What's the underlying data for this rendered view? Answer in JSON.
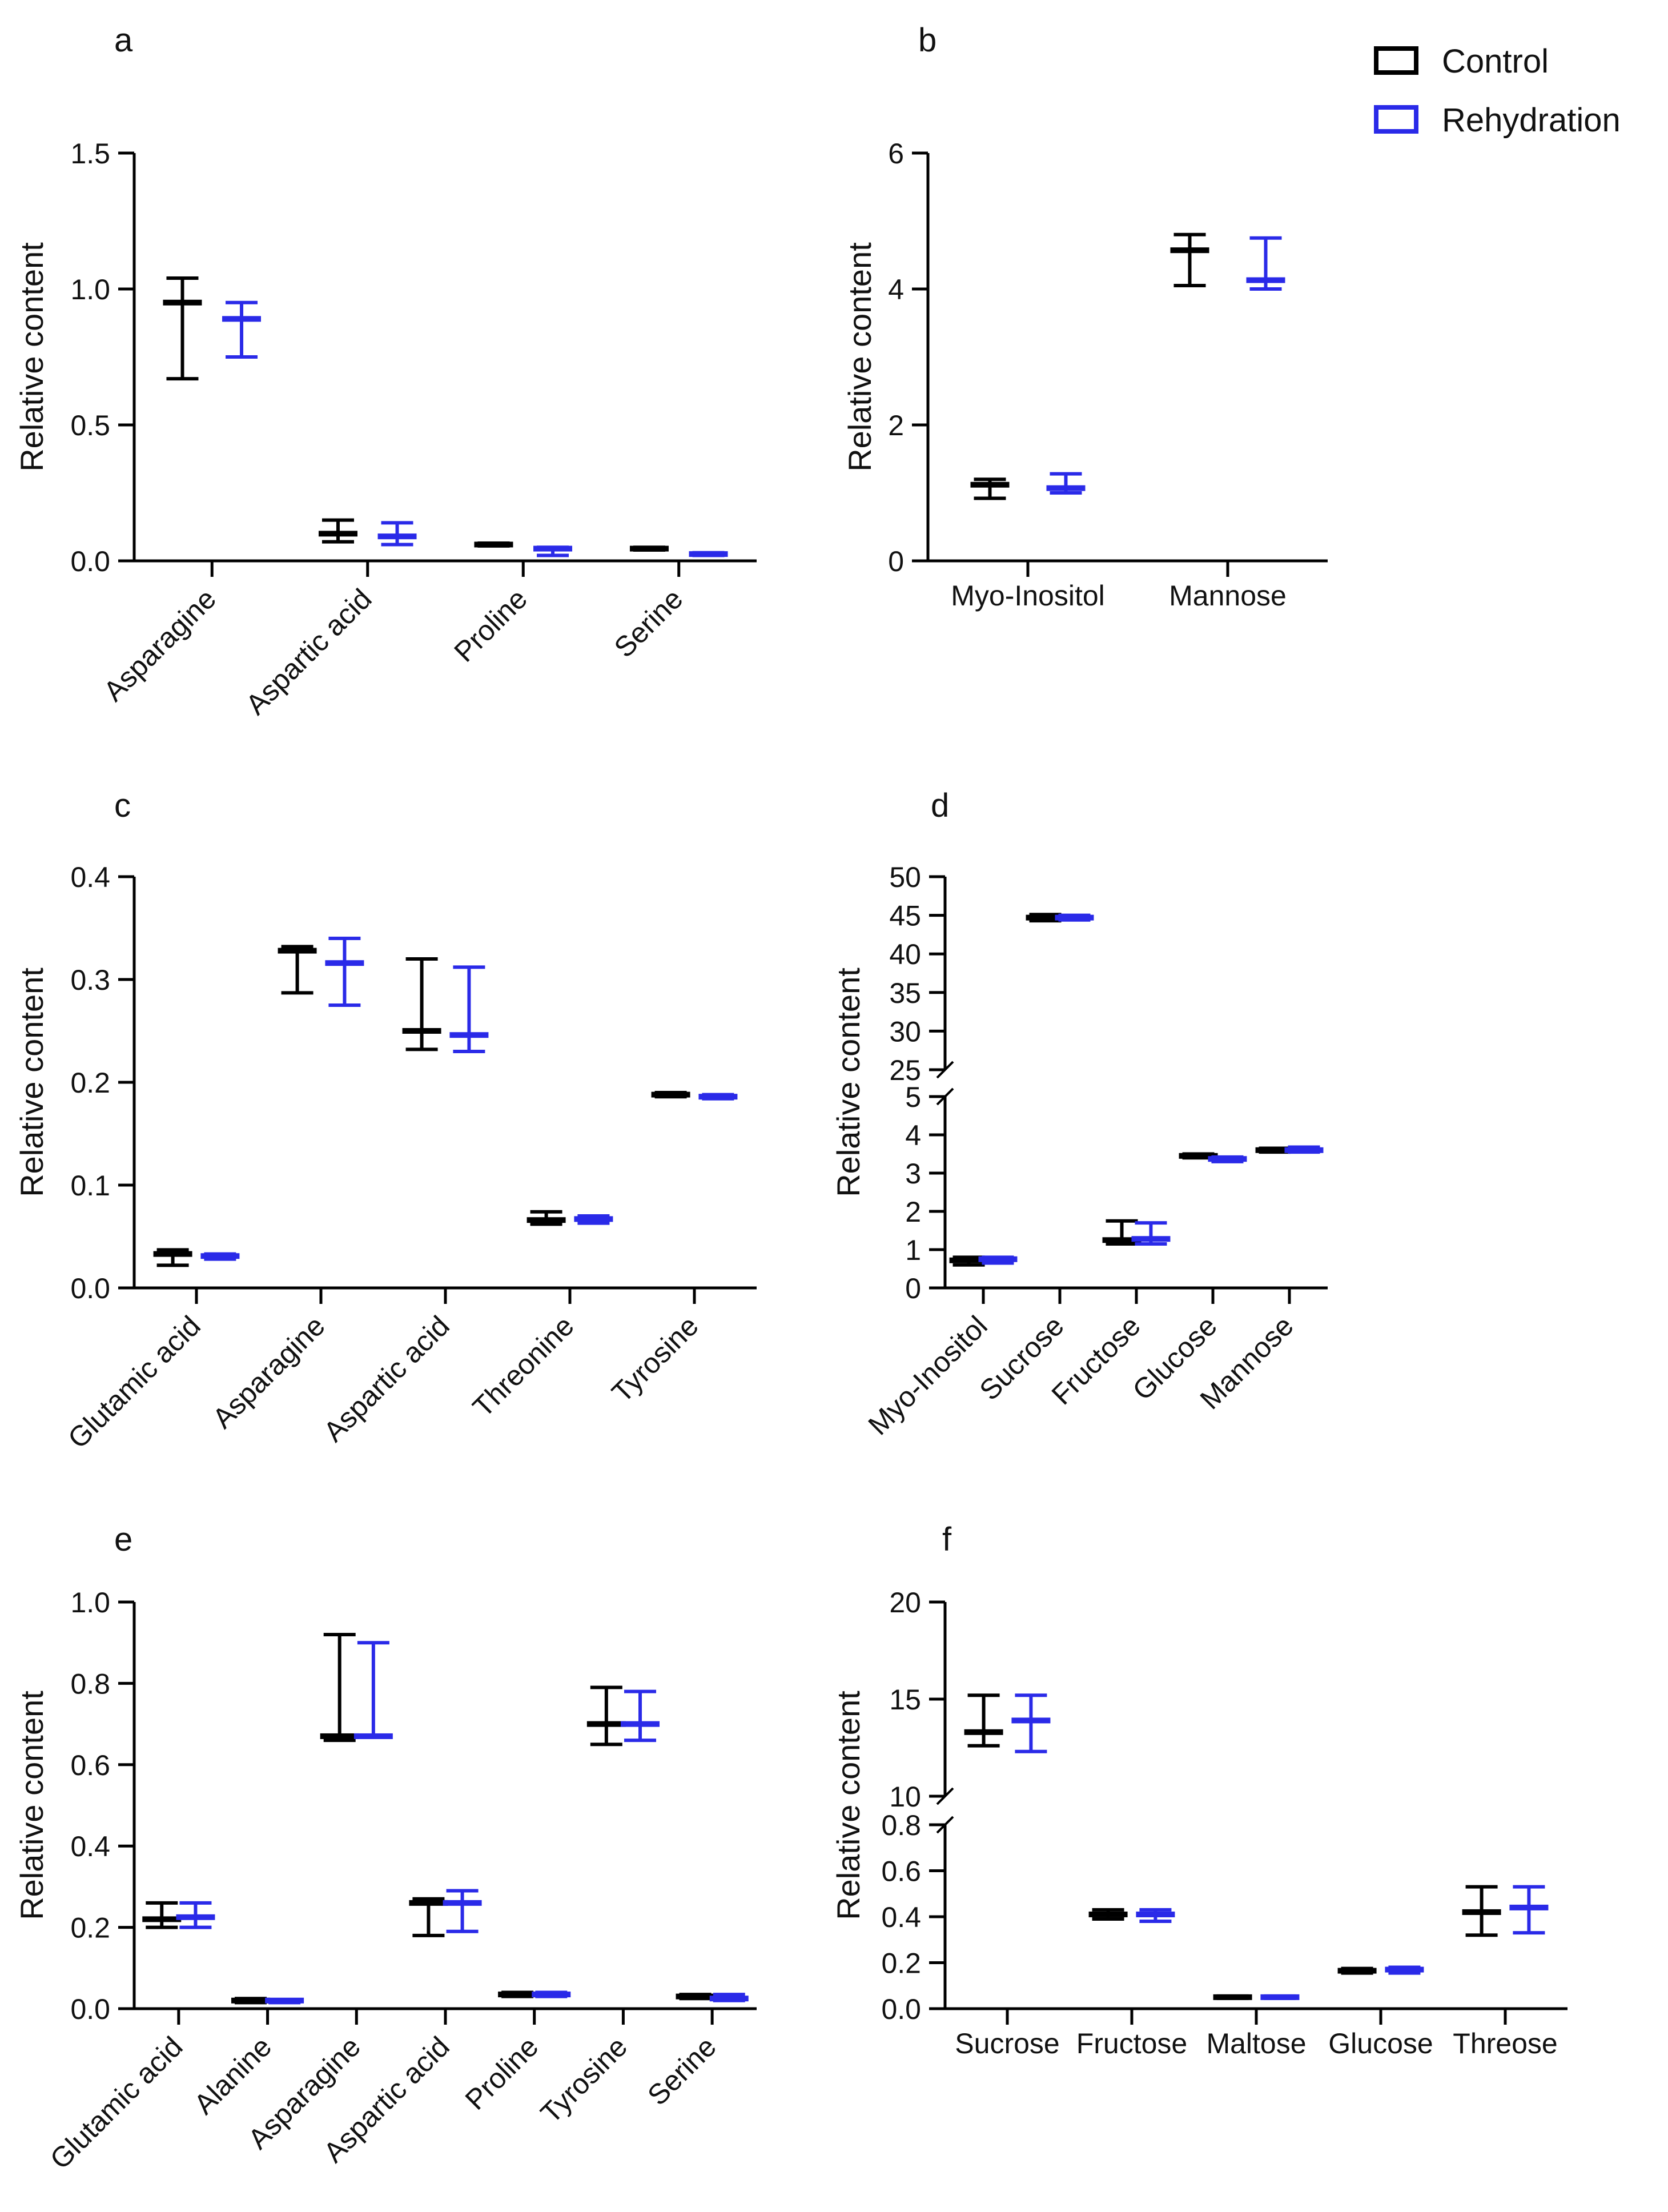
{
  "legend": {
    "placement": "top-right",
    "items": [
      {
        "label": "Control",
        "color": "#000000"
      },
      {
        "label": "Rehydration",
        "color": "#2a2ae8"
      }
    ]
  },
  "chart_data": [
    {
      "panel": "a",
      "type": "box",
      "ylabel": "Relative content",
      "ylim": [
        0,
        1.5
      ],
      "yticks": [
        0,
        0.5,
        1.0,
        1.5
      ],
      "ytick_labels": [
        "0.0",
        "0.5",
        "1.0",
        "1.5"
      ],
      "categories": [
        "Asparagine",
        "Aspartic acid",
        "Proline",
        "Serine"
      ],
      "rotate": true,
      "series": [
        {
          "name": "Control",
          "min": [
            0.67,
            0.07,
            0.055,
            0.04
          ],
          "median": [
            0.95,
            0.1,
            0.06,
            0.045
          ],
          "max": [
            1.04,
            0.15,
            0.065,
            0.05
          ]
        },
        {
          "name": "Rehydration",
          "min": [
            0.75,
            0.06,
            0.02,
            0.02
          ],
          "median": [
            0.89,
            0.09,
            0.045,
            0.025
          ],
          "max": [
            0.95,
            0.14,
            0.05,
            0.03
          ]
        }
      ]
    },
    {
      "panel": "b",
      "type": "box",
      "ylabel": "Relative content",
      "ylim": [
        0,
        6
      ],
      "yticks": [
        0,
        2,
        4,
        6
      ],
      "ytick_labels": [
        "0",
        "2",
        "4",
        "6"
      ],
      "categories": [
        "Myo-Inositol",
        "Mannose"
      ],
      "rotate": false,
      "series": [
        {
          "name": "Control",
          "min": [
            0.92,
            4.05
          ],
          "median": [
            1.12,
            4.57
          ],
          "max": [
            1.2,
            4.8
          ]
        },
        {
          "name": "Rehydration",
          "min": [
            1.0,
            4.0
          ],
          "median": [
            1.07,
            4.13
          ],
          "max": [
            1.28,
            4.75
          ]
        }
      ]
    },
    {
      "panel": "c",
      "type": "box",
      "ylabel": "Relative content",
      "ylim": [
        0,
        0.4
      ],
      "yticks": [
        0,
        0.1,
        0.2,
        0.3,
        0.4
      ],
      "ytick_labels": [
        "0.0",
        "0.1",
        "0.2",
        "0.3",
        "0.4"
      ],
      "categories": [
        "Glutamic acid",
        "Asparagine",
        "Aspartic acid",
        "Threonine",
        "Tyrosine"
      ],
      "rotate": true,
      "series": [
        {
          "name": "Control",
          "min": [
            0.022,
            0.287,
            0.232,
            0.062,
            0.186
          ],
          "median": [
            0.033,
            0.328,
            0.25,
            0.066,
            0.188
          ],
          "max": [
            0.037,
            0.332,
            0.32,
            0.074,
            0.19
          ]
        },
        {
          "name": "Rehydration",
          "min": [
            0.028,
            0.275,
            0.23,
            0.063,
            0.184
          ],
          "median": [
            0.031,
            0.316,
            0.246,
            0.067,
            0.186
          ],
          "max": [
            0.033,
            0.34,
            0.312,
            0.07,
            0.188
          ]
        }
      ]
    },
    {
      "panel": "d",
      "type": "box",
      "ylabel": "Relative content",
      "ylim": [
        0,
        50
      ],
      "broken_axis": {
        "lower": [
          0,
          5
        ],
        "upper": [
          25,
          50
        ]
      },
      "yticks": [
        0,
        1,
        2,
        3,
        4,
        5,
        25,
        30,
        35,
        40,
        45,
        50
      ],
      "ytick_labels": [
        "0",
        "1",
        "2",
        "3",
        "4",
        "5",
        "25",
        "30",
        "35",
        "40",
        "45",
        "50"
      ],
      "categories": [
        "Myo-Inositol",
        "Sucrose",
        "Fructose",
        "Glucose",
        "Mannose"
      ],
      "rotate": true,
      "series": [
        {
          "name": "Control",
          "min": [
            0.6,
            44.3,
            1.15,
            3.4,
            3.55
          ],
          "median": [
            0.72,
            44.7,
            1.25,
            3.45,
            3.6
          ],
          "max": [
            0.8,
            45.1,
            1.75,
            3.5,
            3.65
          ]
        },
        {
          "name": "Rehydration",
          "min": [
            0.65,
            44.4,
            1.15,
            3.3,
            3.55
          ],
          "median": [
            0.75,
            44.7,
            1.28,
            3.37,
            3.6
          ],
          "max": [
            0.8,
            45.0,
            1.7,
            3.42,
            3.68
          ]
        }
      ]
    },
    {
      "panel": "e",
      "type": "box",
      "ylabel": "Relative content",
      "ylim": [
        0,
        1.0
      ],
      "yticks": [
        0,
        0.2,
        0.4,
        0.6,
        0.8,
        1.0
      ],
      "ytick_labels": [
        "0.0",
        "0.2",
        "0.4",
        "0.6",
        "0.8",
        "1.0"
      ],
      "categories": [
        "Glutamic acid",
        "Alanine",
        "Asparagine",
        "Aspartic acid",
        "Proline",
        "Tyrosine",
        "Serine"
      ],
      "rotate": true,
      "series": [
        {
          "name": "Control",
          "min": [
            0.2,
            0.015,
            0.66,
            0.18,
            0.03,
            0.65,
            0.025
          ],
          "median": [
            0.22,
            0.02,
            0.67,
            0.26,
            0.035,
            0.7,
            0.03
          ],
          "max": [
            0.26,
            0.025,
            0.92,
            0.27,
            0.04,
            0.79,
            0.035
          ]
        },
        {
          "name": "Rehydration",
          "min": [
            0.2,
            0.015,
            0.67,
            0.19,
            0.03,
            0.66,
            0.02
          ],
          "median": [
            0.225,
            0.02,
            0.67,
            0.26,
            0.035,
            0.7,
            0.025
          ],
          "max": [
            0.26,
            0.022,
            0.9,
            0.29,
            0.04,
            0.78,
            0.035
          ]
        }
      ]
    },
    {
      "panel": "f",
      "type": "box",
      "ylabel": "Relative content",
      "ylim": [
        0,
        20
      ],
      "broken_axis": {
        "lower": [
          0,
          0.8
        ],
        "upper": [
          10,
          20
        ]
      },
      "yticks": [
        0,
        0.2,
        0.4,
        0.6,
        0.8,
        10,
        15,
        20
      ],
      "ytick_labels": [
        "0.0",
        "0.2",
        "0.4",
        "0.6",
        "0.8",
        "10",
        "15",
        "20"
      ],
      "categories": [
        "Sucrose",
        "Fructose",
        "Maltose",
        "Glucose",
        "Threose"
      ],
      "rotate": false,
      "series": [
        {
          "name": "Control",
          "min": [
            12.6,
            0.39,
            0.045,
            0.155,
            0.32
          ],
          "median": [
            13.3,
            0.41,
            0.05,
            0.165,
            0.42
          ],
          "max": [
            15.2,
            0.43,
            0.055,
            0.175,
            0.53
          ]
        },
        {
          "name": "Rehydration",
          "min": [
            12.3,
            0.38,
            0.045,
            0.155,
            0.33
          ],
          "median": [
            13.9,
            0.41,
            0.05,
            0.17,
            0.44
          ],
          "max": [
            15.2,
            0.43,
            0.055,
            0.18,
            0.53
          ]
        }
      ]
    }
  ]
}
